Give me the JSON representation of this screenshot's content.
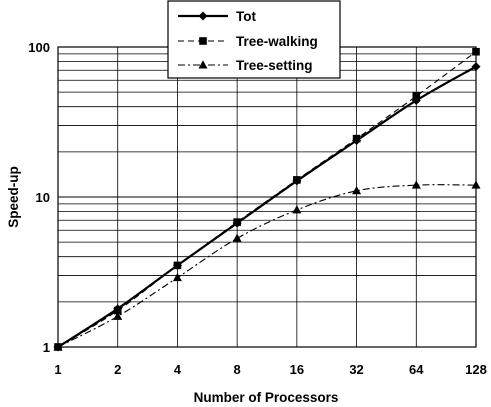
{
  "chart_data": {
    "type": "line",
    "title": "",
    "xlabel": "Number of Processors",
    "ylabel": "Speed-up",
    "x_scale": "log2",
    "y_scale": "log10",
    "x": [
      1,
      2,
      4,
      8,
      16,
      32,
      64,
      128
    ],
    "x_tick_labels": [
      "1",
      "2",
      "4",
      "8",
      "16",
      "32",
      "64",
      "128"
    ],
    "y_tick_labels": [
      "1",
      "10",
      "100"
    ],
    "ylim": [
      1,
      100
    ],
    "xlim": [
      1,
      128
    ],
    "grid": true,
    "legend_position": "top-center",
    "series": [
      {
        "name": "Tot",
        "values": [
          1,
          1.8,
          3.5,
          6.7,
          12.8,
          23.8,
          44,
          74
        ],
        "marker": "diamond",
        "line_style": "solid"
      },
      {
        "name": "Tree-walking",
        "values": [
          1,
          1.75,
          3.5,
          6.8,
          13,
          24.5,
          47,
          93
        ],
        "marker": "square",
        "line_style": "dashed"
      },
      {
        "name": "Tree-setting",
        "values": [
          1,
          1.6,
          2.9,
          5.3,
          8.2,
          11,
          12,
          12
        ],
        "marker": "triangle",
        "line_style": "dash-dot"
      }
    ]
  }
}
